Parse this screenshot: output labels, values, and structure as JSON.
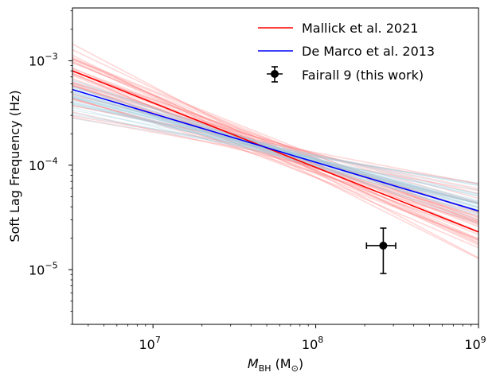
{
  "chart_data": {
    "type": "line",
    "xscale": "log",
    "yscale": "log",
    "xlim": [
      3200000,
      1000000000
    ],
    "ylim": [
      3e-06,
      0.0032
    ],
    "xlabel": "M_BH (M_⊙)",
    "xlabel_main": "M",
    "xlabel_sub": "BH",
    "xlabel_unit": "(M",
    "xlabel_unit_sub": "⊙",
    "xlabel_close": ")",
    "ylabel": "Soft Lag Frequency (Hz)",
    "x_ticks": [
      {
        "value": 10000000,
        "base": "10",
        "exp": "7"
      },
      {
        "value": 100000000,
        "base": "10",
        "exp": "8"
      },
      {
        "value": 1000000000,
        "base": "10",
        "exp": "9"
      }
    ],
    "y_ticks": [
      {
        "value": 1e-05,
        "base": "10",
        "exp": "−5"
      },
      {
        "value": 0.0001,
        "base": "10",
        "exp": "−4"
      },
      {
        "value": 0.001,
        "base": "10",
        "exp": "−3"
      }
    ],
    "series": [
      {
        "name": "Mallick et al. 2021",
        "color": "#ff0000",
        "x": [
          3200000,
          1000000000
        ],
        "y": [
          0.0008,
          2.3e-05
        ]
      },
      {
        "name": "De Marco et al. 2013",
        "color": "#0000ff",
        "x": [
          3200000,
          1000000000
        ],
        "y": [
          0.00053,
          3.65e-05
        ]
      }
    ],
    "uncertainty_samples": {
      "mallick_color": "#ff7f7f",
      "demarco_color": "#9fcfe0",
      "pivot_x": 50000000,
      "pivot_y": 0.000145,
      "mallick_slopes": [
        -0.82,
        -0.78,
        -0.74,
        -0.7,
        -0.67,
        -0.65,
        -0.63,
        -0.61,
        -0.6,
        -0.58,
        -0.57,
        -0.55,
        -0.54,
        -0.52,
        -0.5,
        -0.48,
        -0.46,
        -0.44,
        -0.42,
        -0.4,
        -0.38,
        -0.35,
        -0.32,
        -0.3,
        -0.28,
        -0.26,
        -0.62,
        -0.59,
        -0.56,
        -0.53,
        -0.51,
        -0.49,
        -0.45,
        -0.43,
        -0.66,
        -0.69,
        -0.72,
        -0.64,
        -0.61,
        -0.58
      ],
      "mallick_offsets": [
        0.02,
        -0.04,
        0.06,
        0.0,
        -0.08,
        0.05,
        0.1,
        -0.03,
        0.03,
        0.07,
        -0.06,
        0.01,
        0.09,
        -0.02,
        0.04,
        -0.09,
        0.08,
        -0.05,
        0.02,
        -0.01,
        0.06,
        -0.07,
        0.03,
        0.05,
        -0.04,
        0.0,
        0.12,
        -0.1,
        0.07,
        -0.03,
        0.0,
        0.04,
        -0.06,
        0.08,
        -0.02,
        0.03,
        0.01,
        -0.05,
        0.09,
        0.02
      ],
      "demarco_slopes": [
        -0.55,
        -0.52,
        -0.5,
        -0.48,
        -0.47,
        -0.46,
        -0.45,
        -0.44,
        -0.43,
        -0.42,
        -0.41,
        -0.4,
        -0.39,
        -0.38,
        -0.37,
        -0.36,
        -0.35,
        -0.33,
        -0.31,
        -0.29,
        -0.27,
        -0.25,
        -0.49,
        -0.44,
        -0.42,
        -0.4,
        -0.38,
        -0.46,
        -0.43,
        -0.41
      ],
      "demarco_offsets": [
        0.0,
        0.03,
        -0.03,
        0.02,
        -0.02,
        0.04,
        -0.01,
        0.01,
        0.03,
        -0.04,
        0.0,
        0.02,
        -0.02,
        0.05,
        -0.05,
        0.01,
        0.0,
        0.03,
        -0.03,
        0.02,
        0.0,
        -0.01,
        0.04,
        -0.04,
        0.02,
        0.01,
        -0.02,
        0.03,
        -0.01,
        0.0
      ]
    },
    "errorbar_point": {
      "name": "Fairall 9 (this work)",
      "color": "#000000",
      "x": 260000000,
      "x_low": 205000000,
      "x_high": 310000000,
      "y": 1.7e-05,
      "y_low": 9.2e-06,
      "y_high": 2.5e-05
    },
    "legend": {
      "position": "top-right",
      "entries": [
        "Mallick et al. 2021",
        "De Marco et al. 2013",
        "Fairall 9 (this work)"
      ]
    }
  }
}
